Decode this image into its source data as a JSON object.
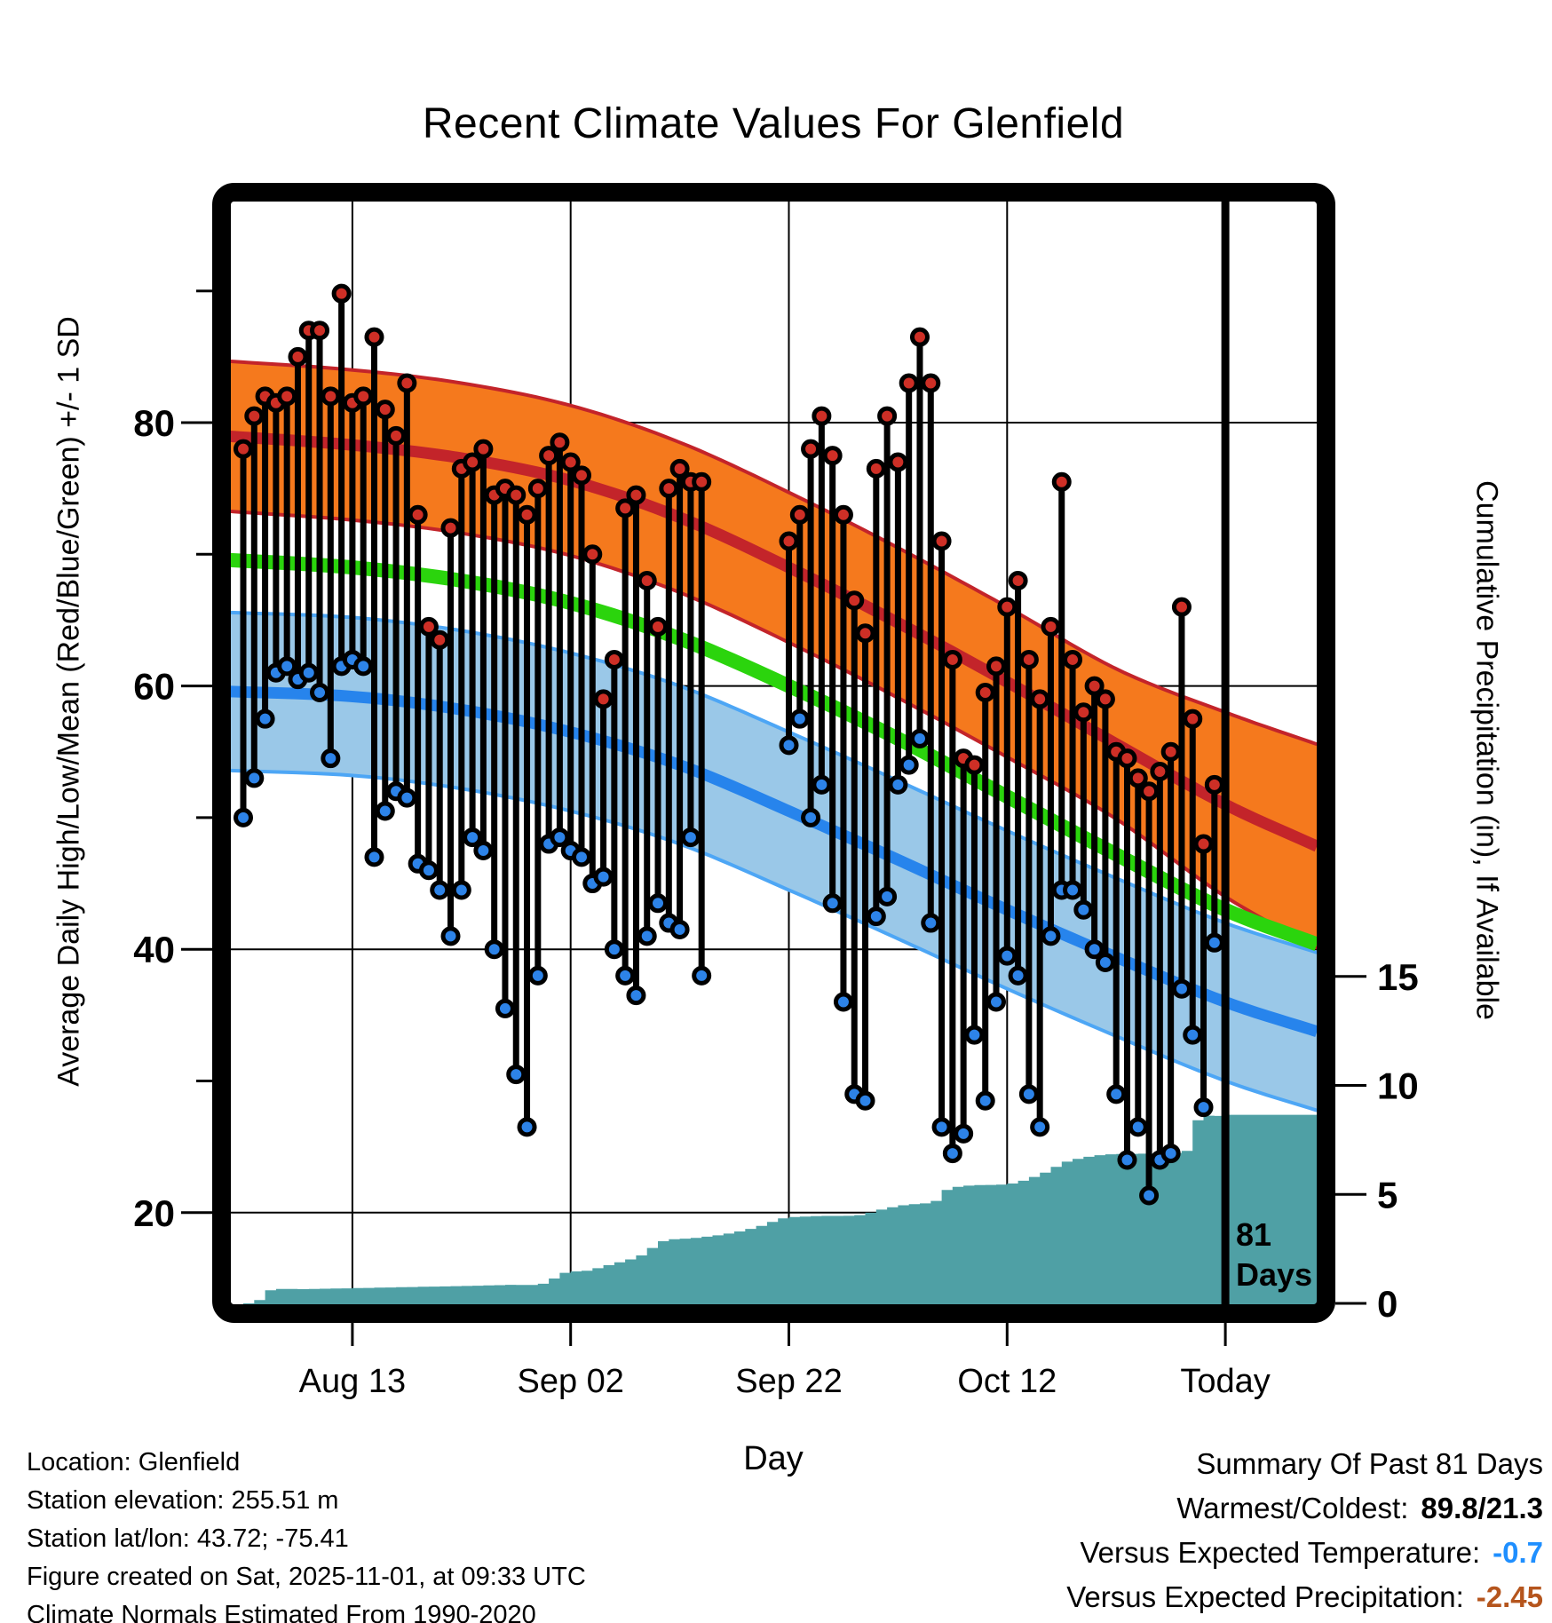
{
  "title": "Recent Climate Values For Glenfield",
  "axes": {
    "x_label": "Day",
    "left_label": "Average Daily High/Low/Mean (Red/Blue/Green) +/- 1 SD",
    "right_label": "Cumulative Precipitation (in), If Available",
    "x_tick_labels": [
      "Aug 13",
      "Sep 02",
      "Sep 22",
      "Oct 12",
      "Today"
    ],
    "x_tick_days": [
      10,
      30,
      50,
      70,
      90
    ],
    "left_tick_labels": [
      "80",
      "60",
      "40",
      "20"
    ],
    "left_tick_values": [
      80,
      60,
      40,
      20
    ],
    "left_minor_tick_values": [
      90,
      70,
      50,
      30
    ],
    "right_tick_labels": [
      "15",
      "10",
      "5",
      "0"
    ],
    "right_tick_values": [
      15,
      10,
      5,
      0
    ]
  },
  "annotation": {
    "days_marker": "81\nDays",
    "today_day": 90
  },
  "footer": {
    "line1": "Location: Glenfield",
    "line2": "Station elevation: 255.51 m",
    "line3": "Station lat/lon: 43.72; -75.41",
    "line4": "Figure created on Sat, 2025-11-01, at 09:33 UTC",
    "line5": "Climate Normals Estimated From 1990-2020"
  },
  "summary": {
    "heading": "Summary Of Past 81 Days",
    "warmest_coldest_label": "Warmest/Coldest:",
    "warmest_coldest_value": "89.8/21.3",
    "vs_temp_label": "Versus Expected Temperature:",
    "vs_temp_value": "-0.7",
    "vs_precip_label": "Versus Expected Precipitation:",
    "vs_precip_value": "-2.45"
  },
  "colors": {
    "high_band_fill": "#F5791D",
    "high_edge_and_mean": "#C3242A",
    "mean_line_green": "#2BD40D",
    "low_band_fill": "#9AC8E8",
    "low_edge": "#4DA6F5",
    "low_mean_line": "#2784EC",
    "precip_fill": "#4FA0A5",
    "dot_high": "#CE2F26",
    "dot_low": "#2D83E8",
    "stem": "#000000",
    "frame": "#000000",
    "summary_temp_value": "#1F8FFF",
    "summary_precip_value": "#B5551D"
  },
  "chart_data": {
    "type": "line",
    "description": "Daily high/low temperature stems vs climate normal bands (+/- 1 SD) and cumulative precipitation area. Day 0 = Aug 3; Today = Nov 1 (day 90).",
    "ylim_temp_F": [
      13,
      97
    ],
    "ylim_precip_in": [
      0,
      20
    ],
    "normals": {
      "days": [
        -2,
        10,
        20,
        30,
        40,
        50,
        60,
        70,
        80,
        90,
        99
      ],
      "high_upper": [
        84.7,
        84.0,
        83.0,
        81.3,
        78.5,
        74.7,
        70.5,
        66.0,
        61.3,
        58.0,
        55.4
      ],
      "high_mean": [
        79.0,
        78.3,
        77.3,
        75.6,
        72.8,
        69.0,
        64.8,
        60.3,
        55.6,
        51.0,
        47.6
      ],
      "high_lower": [
        73.3,
        72.6,
        71.6,
        69.9,
        67.1,
        63.3,
        59.1,
        54.6,
        49.9,
        44.0,
        39.8
      ],
      "mean": [
        69.6,
        69.0,
        68.0,
        66.3,
        63.6,
        60.0,
        56.0,
        51.6,
        47.2,
        43.0,
        40.2
      ],
      "low_upper": [
        65.6,
        65.2,
        64.2,
        62.5,
        60.0,
        56.5,
        52.8,
        49.0,
        45.4,
        42.0,
        39.6
      ],
      "low_mean": [
        59.6,
        59.2,
        58.2,
        56.5,
        54.0,
        50.5,
        46.8,
        43.0,
        39.4,
        36.0,
        33.6
      ],
      "low_lower": [
        53.6,
        53.2,
        52.2,
        50.5,
        48.0,
        44.5,
        40.8,
        37.0,
        33.4,
        30.0,
        27.6
      ]
    },
    "daily": {
      "dates": [
        "Aug 3",
        "Aug 4",
        "Aug 5",
        "Aug 6",
        "Aug 7",
        "Aug 8",
        "Aug 9",
        "Aug 10",
        "Aug 11",
        "Aug 12",
        "Aug 13",
        "Aug 14",
        "Aug 15",
        "Aug 16",
        "Aug 17",
        "Aug 18",
        "Aug 19",
        "Aug 20",
        "Aug 21",
        "Aug 22",
        "Aug 23",
        "Aug 24",
        "Aug 25",
        "Aug 26",
        "Aug 27",
        "Aug 28",
        "Aug 29",
        "Aug 30",
        "Aug 31",
        "Sep 1",
        "Sep 2",
        "Sep 3",
        "Sep 4",
        "Sep 5",
        "Sep 6",
        "Sep 7",
        "Sep 8",
        "Sep 9",
        "Sep 10",
        "Sep 11",
        "Sep 12",
        "Sep 13",
        "Sep 14",
        "Sep 15",
        "Sep 16",
        "Sep 17",
        "Sep 18",
        "Sep 19",
        "Sep 20",
        "Sep 21",
        "Sep 22",
        "Sep 23",
        "Sep 24",
        "Sep 25",
        "Sep 26",
        "Sep 27",
        "Sep 28",
        "Sep 29",
        "Sep 30",
        "Oct 1",
        "Oct 2",
        "Oct 3",
        "Oct 4",
        "Oct 5",
        "Oct 6",
        "Oct 7",
        "Oct 8",
        "Oct 9",
        "Oct 10",
        "Oct 11",
        "Oct 12",
        "Oct 13",
        "Oct 14",
        "Oct 15",
        "Oct 16",
        "Oct 17",
        "Oct 18",
        "Oct 19",
        "Oct 20",
        "Oct 21",
        "Oct 22",
        "Oct 23",
        "Oct 24",
        "Oct 25",
        "Oct 26",
        "Oct 27",
        "Oct 28",
        "Oct 29",
        "Oct 30",
        "Oct 31"
      ],
      "high": [
        78,
        80.5,
        82,
        81.5,
        82,
        85,
        87,
        87,
        82,
        89.8,
        81.5,
        82,
        86.5,
        81,
        79,
        83,
        73,
        64.5,
        63.5,
        72,
        76.5,
        77,
        78,
        74.5,
        75,
        74.5,
        73,
        75,
        77.5,
        78.5,
        77,
        76,
        70,
        59,
        62,
        73.5,
        74.5,
        68,
        64.5,
        75,
        76.5,
        75.5,
        75.5,
        null,
        null,
        null,
        null,
        null,
        null,
        null,
        71,
        73,
        78,
        80.5,
        77.5,
        73,
        66.5,
        64,
        76.5,
        80.5,
        77,
        83,
        86.5,
        83,
        71,
        62,
        54.5,
        54,
        59.5,
        61.5,
        66,
        68,
        62,
        59,
        64.5,
        75.5,
        62,
        58,
        60,
        59,
        55,
        54.5,
        53,
        52,
        53.5,
        55,
        66,
        57.5,
        48,
        52.5
      ],
      "low": [
        50,
        53,
        57.5,
        61,
        61.5,
        60.5,
        61,
        59.5,
        54.5,
        61.5,
        62,
        61.5,
        47,
        50.5,
        52,
        51.5,
        46.5,
        46,
        44.5,
        41,
        44.5,
        48.5,
        47.5,
        40,
        35.5,
        30.5,
        26.5,
        38,
        48,
        48.5,
        47.5,
        47,
        45,
        45.5,
        40,
        38,
        36.5,
        41,
        43.5,
        42,
        41.5,
        48.5,
        38,
        null,
        null,
        null,
        null,
        null,
        null,
        null,
        55.5,
        57.5,
        50,
        52.5,
        43.5,
        36,
        29,
        28.5,
        42.5,
        44,
        52.5,
        54,
        56,
        42,
        26.5,
        24.5,
        26,
        33.5,
        28.5,
        36,
        39.5,
        38,
        29,
        26.5,
        41,
        44.5,
        44.5,
        43,
        40,
        39,
        29,
        24,
        26.5,
        21.3,
        24,
        24.5,
        37,
        33.5,
        28,
        40.5
      ]
    },
    "precip_cumulative_in": {
      "days": [
        0,
        1,
        2,
        5,
        10,
        15,
        20,
        24,
        27,
        29,
        31,
        33,
        36,
        38,
        41,
        44,
        47,
        49,
        52,
        56,
        58,
        60,
        63,
        64,
        66,
        70,
        73,
        75,
        78,
        80,
        85,
        86,
        87,
        89,
        90,
        98.4
      ],
      "values": [
        0,
        0.15,
        0.6,
        0.65,
        0.7,
        0.75,
        0.8,
        0.85,
        0.9,
        1.4,
        1.5,
        1.75,
        2.2,
        2.85,
        3.0,
        3.2,
        3.55,
        3.9,
        4.0,
        4.05,
        4.3,
        4.5,
        4.7,
        5.2,
        5.4,
        5.5,
        6.0,
        6.5,
        6.8,
        6.85,
        6.9,
        7.0,
        8.4,
        8.6,
        8.65,
        8.65
      ],
      "final_total": 8.65
    }
  }
}
